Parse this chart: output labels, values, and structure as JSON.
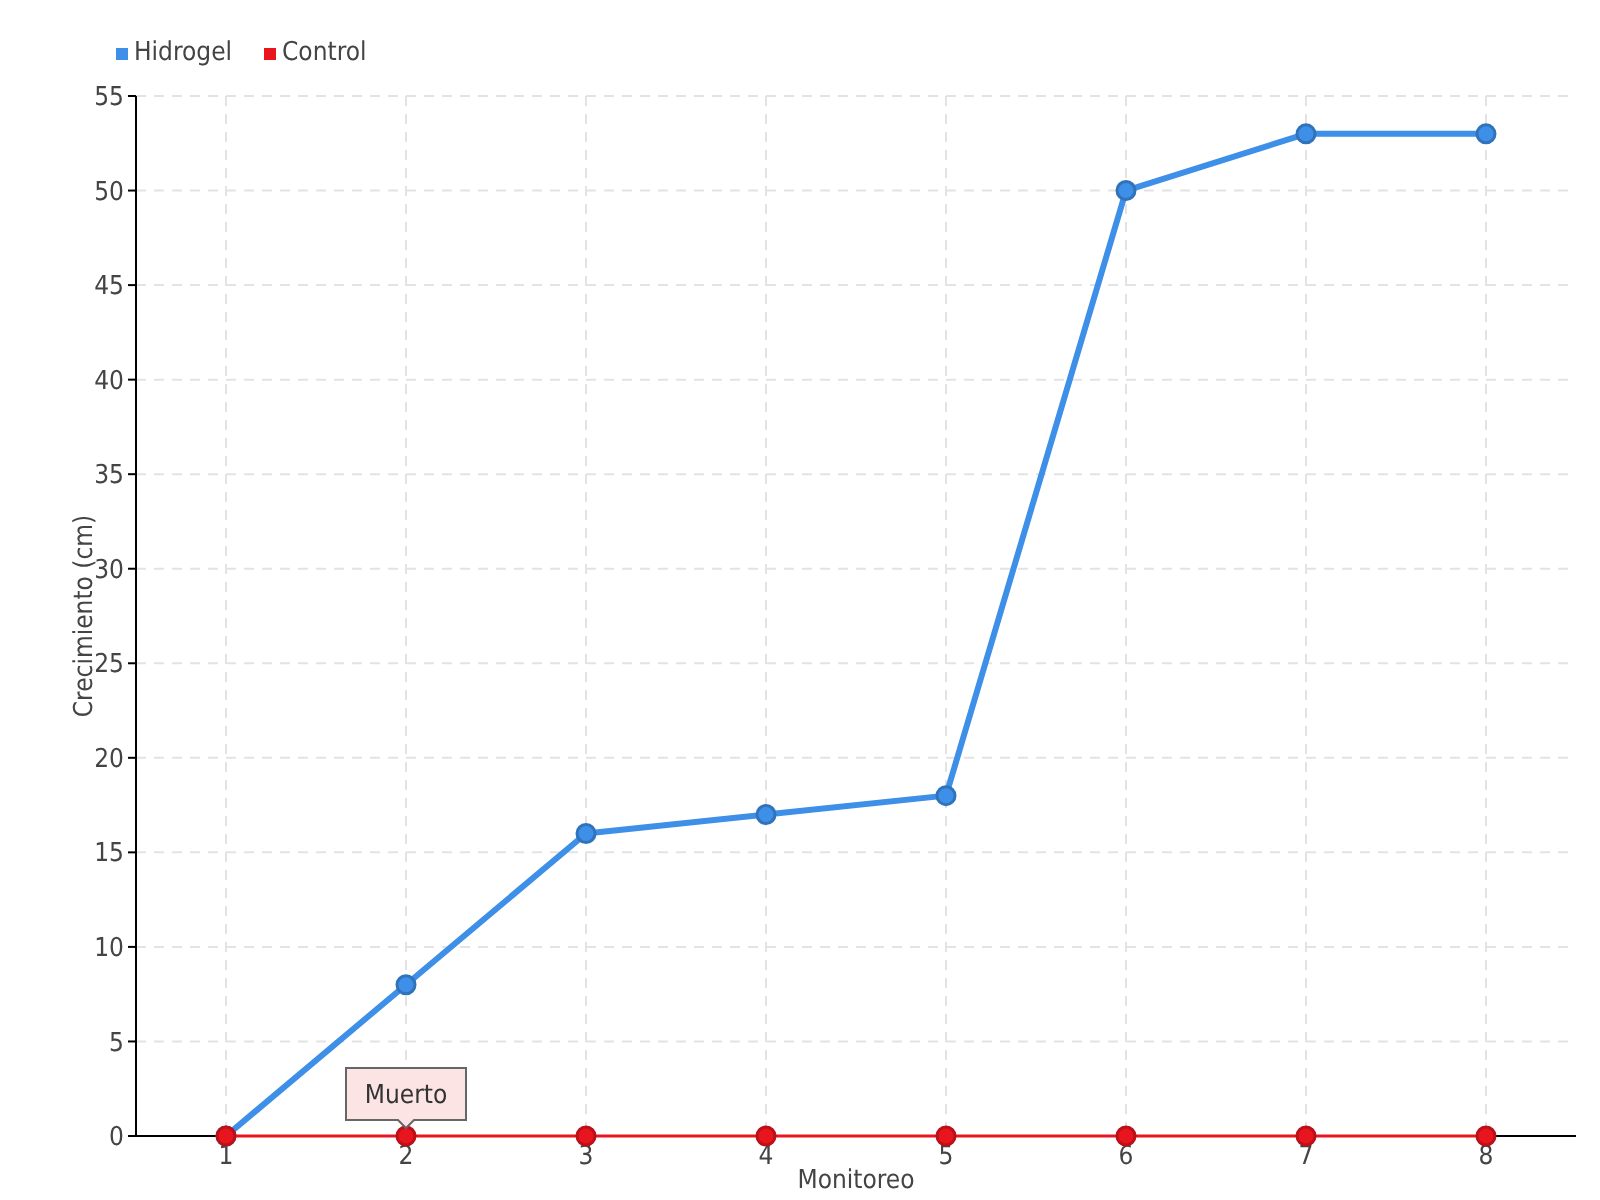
{
  "chart_data": {
    "type": "line",
    "xlabel": "Monitoreo",
    "ylabel": "Crecimiento (cm)",
    "categories": [
      "1",
      "2",
      "3",
      "4",
      "5",
      "6",
      "7",
      "8"
    ],
    "series": [
      {
        "name": "Hidrogel",
        "color": "#3d8fe8",
        "values": [
          0,
          8,
          16,
          17,
          18,
          50,
          53,
          53
        ]
      },
      {
        "name": "Control",
        "color": "#e8141e",
        "values": [
          0,
          0,
          0,
          0,
          0,
          0,
          0,
          0
        ]
      }
    ],
    "ylim": [
      0,
      55
    ],
    "yticks": [
      0,
      5,
      10,
      15,
      20,
      25,
      30,
      35,
      40,
      45,
      50,
      55
    ],
    "grid": true,
    "legend": "top left",
    "marker": "circle",
    "line_style": "solid",
    "annotations": [
      {
        "text": "Muerto",
        "x": "2",
        "y": 0
      }
    ]
  }
}
